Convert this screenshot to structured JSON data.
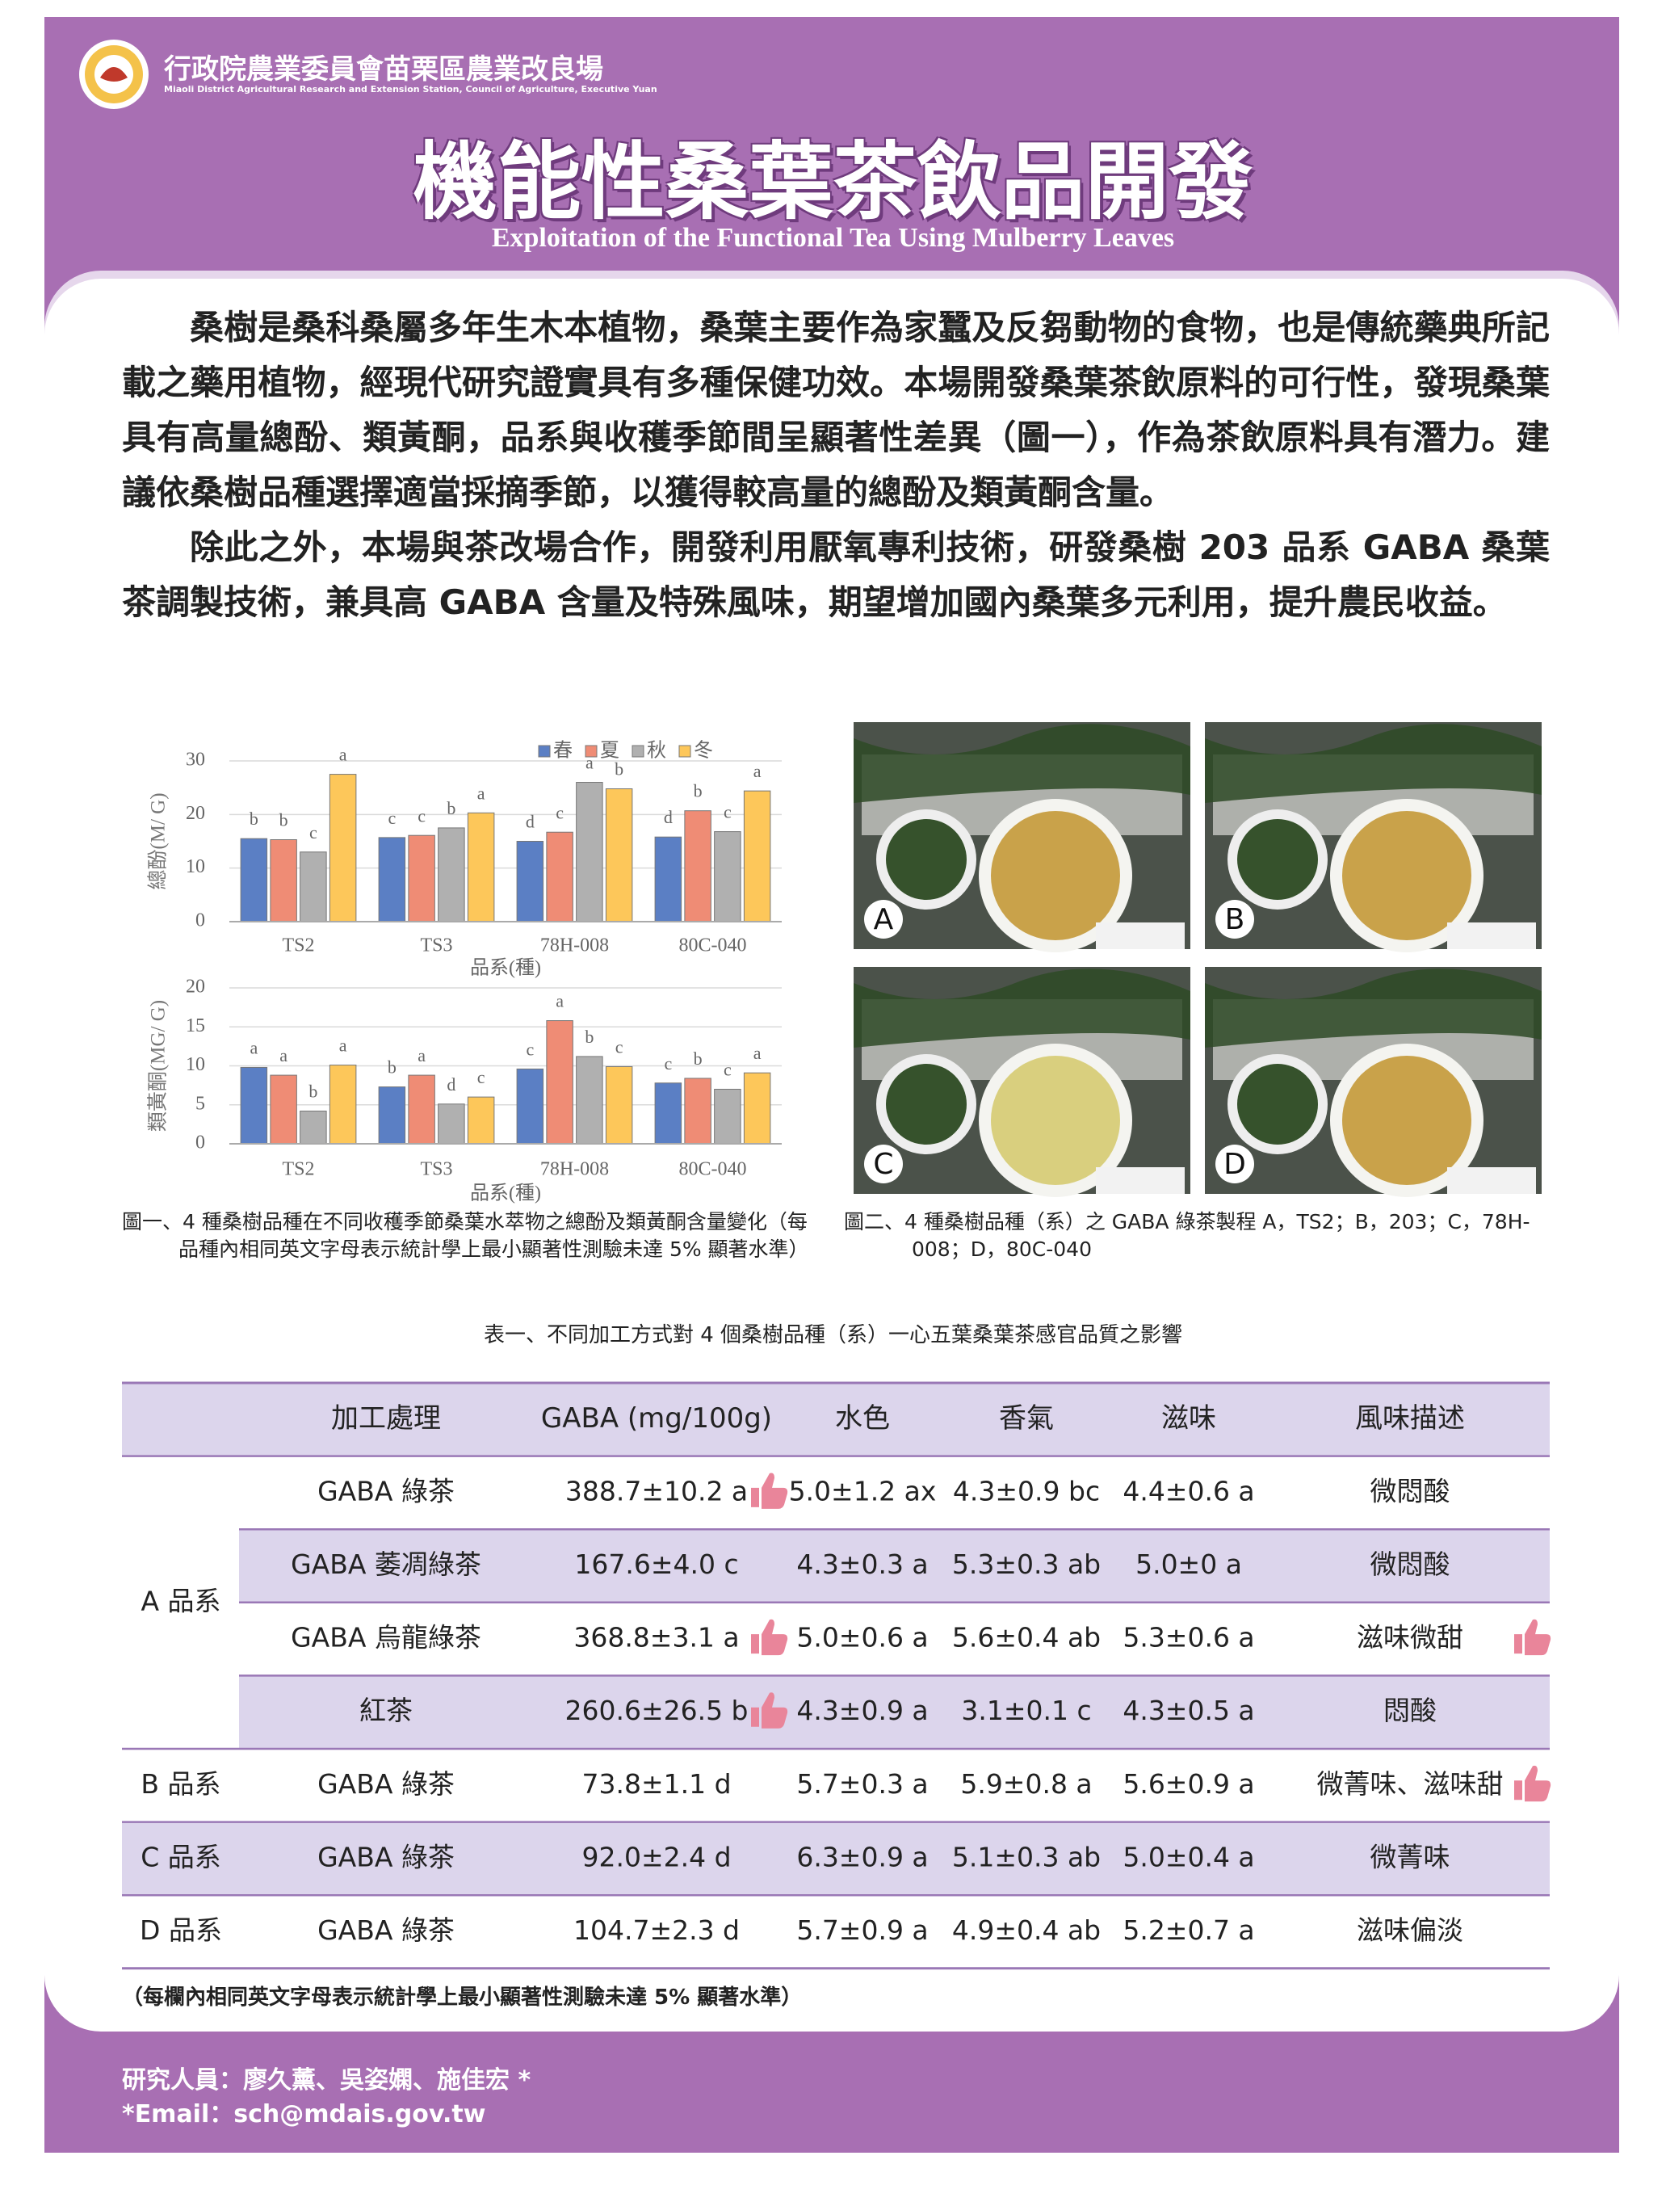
{
  "header": {
    "org_name": "行政院農業委員會苗栗區農業改良場",
    "org_name_en": "Miaoli District Agricultural Research and Extension Station, Council of Agriculture, Executive Yuan",
    "title": "機能性桑葉茶飲品開發",
    "subtitle": "Exploitation of the Functional Tea Using Mulberry Leaves"
  },
  "body": {
    "paragraphs": [
      "桑樹是桑科桑屬多年生木本植物，桑葉主要作為家蠶及反芻動物的食物，也是傳統藥典所記載之藥用植物，經現代研究證實具有多種保健功效。本場開發桑葉茶飲原料的可行性，發現桑葉具有高量總酚、類黃酮，品系與收穫季節間呈顯著性差異（圖一），作為茶飲原料具有潛力。建議依桑樹品種選擇適當採摘季節，以獲得較高量的總酚及類黃酮含量。",
      "除此之外，本場與茶改場合作，開發利用厭氧專利技術，研發桑樹 203 品系 GABA 桑葉茶調製技術，兼具高 GABA 含量及特殊風味，期望增加國內桑葉多元利用，提升農民收益。"
    ]
  },
  "chart_data": [
    {
      "type": "bar",
      "y_label": "總酚(M/ G)",
      "x_label": "品系(種)",
      "legend": true,
      "categories": [
        "TS2",
        "TS3",
        "78H-008",
        "80C-040"
      ],
      "ylim": [
        0,
        30
      ],
      "yticks": [
        0,
        10,
        20,
        30
      ],
      "grid": true,
      "series": [
        {
          "name": "春",
          "color": "#5b7fc4",
          "values": [
            15.5,
            15.7,
            15.0,
            15.8
          ],
          "letters": [
            "b",
            "c",
            "d",
            "d"
          ]
        },
        {
          "name": "夏",
          "color": "#ef8c75",
          "values": [
            15.3,
            16.1,
            16.7,
            20.7
          ],
          "letters": [
            "b",
            "c",
            "c",
            "b"
          ]
        },
        {
          "name": "秋",
          "color": "#b0b0b0",
          "values": [
            13.0,
            17.5,
            26.0,
            16.8
          ],
          "letters": [
            "c",
            "b",
            "a",
            "c"
          ]
        },
        {
          "name": "冬",
          "color": "#fdc75a",
          "values": [
            27.5,
            20.3,
            24.8,
            24.4
          ],
          "letters": [
            "a",
            "a",
            "b",
            "a"
          ]
        }
      ]
    },
    {
      "type": "bar",
      "y_label": "類黃酮(MG/ G)",
      "x_label": "品系(種)",
      "legend": false,
      "categories": [
        "TS2",
        "TS3",
        "78H-008",
        "80C-040"
      ],
      "ylim": [
        0,
        20
      ],
      "yticks": [
        0,
        5,
        10,
        15,
        20
      ],
      "grid": true,
      "series": [
        {
          "color": "#5b7fc4",
          "values": [
            9.8,
            7.3,
            9.6,
            7.8
          ],
          "letters": [
            "a",
            "b",
            "c",
            "c"
          ]
        },
        {
          "color": "#ef8c75",
          "values": [
            8.8,
            8.8,
            15.8,
            8.4
          ],
          "letters": [
            "a",
            "a",
            "a",
            "b"
          ]
        },
        {
          "color": "#b0b0b0",
          "values": [
            4.2,
            5.1,
            11.2,
            7.0
          ],
          "letters": [
            "b",
            "d",
            "b",
            "c"
          ]
        },
        {
          "color": "#fdc75a",
          "values": [
            10.1,
            6.0,
            9.9,
            9.1
          ],
          "letters": [
            "a",
            "c",
            "c",
            "a"
          ]
        }
      ]
    }
  ],
  "figure1_caption": "圖一、4 種桑樹品種在不同收穫季節桑葉水萃物之總酚及類黃酮含量變化（每品種內相同英文字母表示統計學上最小顯著性測驗未達 5% 顯著水準）",
  "figure2": {
    "caption": "圖二、4 種桑樹品種（系）之 GABA 綠茶製程 A，TS2；B，203；C，78H-008；D，80C-040",
    "panels": [
      "A",
      "B",
      "C",
      "D"
    ]
  },
  "table": {
    "title": "表一、不同加工方式對 4 個桑樹品種（系）一心五葉桑葉茶感官品質之影響",
    "columns": [
      "加工處理",
      "GABA (mg/100g)",
      "水色",
      "香氣",
      "滋味",
      "風味描述"
    ],
    "groups": [
      {
        "name": "A 品系",
        "rows": [
          [
            "GABA 綠茶",
            "388.7±10.2 a",
            "5.0±1.2 ax",
            "4.3±0.9 bc",
            "4.4±0.6 a",
            "微悶酸"
          ],
          [
            "GABA 萎凋綠茶",
            "167.6±4.0 c",
            "4.3±0.3 a",
            "5.3±0.3 ab",
            "5.0±0 a",
            "微悶酸"
          ],
          [
            "GABA 烏龍綠茶",
            "368.8±3.1 a",
            "5.0±0.6 a",
            "5.6±0.4 ab",
            "5.3±0.6 a",
            "滋味微甜"
          ],
          [
            "紅茶",
            "260.6±26.5 b",
            "4.3±0.9 a",
            "3.1±0.1 c",
            "4.3±0.5 a",
            "悶酸"
          ]
        ]
      },
      {
        "name": "B 品系",
        "rows": [
          [
            "GABA 綠茶",
            "73.8±1.1 d",
            "5.7±0.3 a",
            "5.9±0.8 a",
            "5.6±0.9 a",
            "微菁味、滋味甜"
          ]
        ]
      },
      {
        "name": "C 品系",
        "rows": [
          [
            "GABA 綠茶",
            "92.0±2.4 d",
            "6.3±0.9 a",
            "5.1±0.3 ab",
            "5.0±0.4 a",
            "微菁味"
          ]
        ]
      },
      {
        "name": "D 品系",
        "rows": [
          [
            "GABA 綠茶",
            "104.7±2.3 d",
            "5.7±0.9 a",
            "4.9±0.4 ab",
            "5.2±0.7 a",
            "滋味偏淡"
          ]
        ]
      }
    ],
    "note": "（每欄內相同英文字母表示統計學上最小顯著性測驗未達 5% 顯著水準）"
  },
  "footer": {
    "researchers": "研究人員：廖久薰、吳姿嫻、施佳宏 *",
    "email": "*Email：sch@mdais.gov.tw"
  }
}
